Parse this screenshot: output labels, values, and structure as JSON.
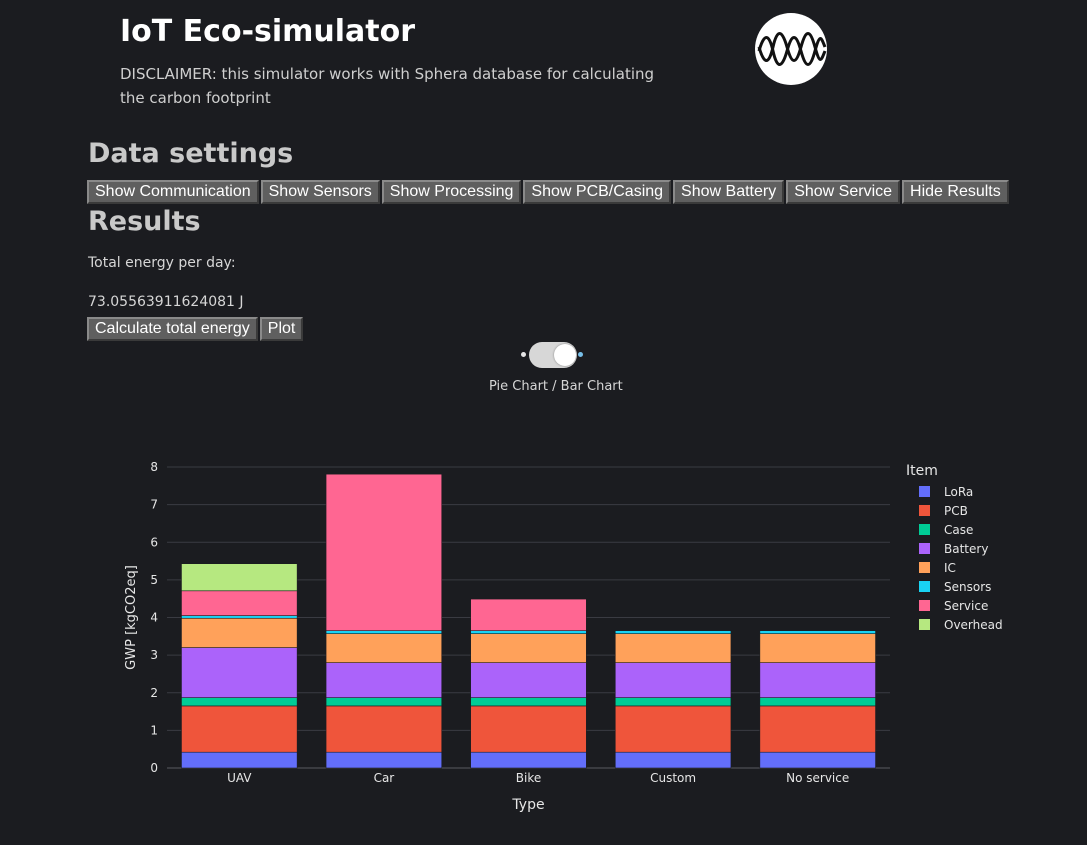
{
  "header": {
    "title": "IoT Eco-simulator",
    "disclaimer": "DISCLAIMER: this simulator works with Sphera database for calculating the carbon footprint",
    "logo_icon": "waveform-logo-icon"
  },
  "data_settings": {
    "title": "Data settings",
    "buttons": [
      "Show Communication",
      "Show Sensors",
      "Show Processing",
      "Show PCB/Casing",
      "Show Battery",
      "Show Service",
      "Hide Results"
    ]
  },
  "results": {
    "title": "Results",
    "energy_label": "Total energy per day:",
    "energy_value": "73.05563911624081 J",
    "calculate_button": "Calculate total energy",
    "plot_button": "Plot",
    "toggle_label": "Pie Chart / Bar Chart",
    "toggle_state": "Bar Chart"
  },
  "colors": {
    "background": "#1b1c20",
    "button": "#5f5f5f",
    "toggle_accent": "#77bfe9"
  },
  "chart_data": {
    "type": "bar",
    "stacked": true,
    "categories": [
      "UAV",
      "Car",
      "Bike",
      "Custom",
      "No service"
    ],
    "xlabel": "Type",
    "ylabel": "GWP [kgCO2eq]",
    "ylim": [
      0,
      8
    ],
    "yticks": [
      "0",
      "1",
      "2",
      "3",
      "4",
      "5",
      "6",
      "7",
      "8"
    ],
    "grid": true,
    "legend_title": "Item",
    "legend_position": "right",
    "series": [
      {
        "name": "LoRa",
        "color": "#636efa",
        "values": [
          0.42,
          0.42,
          0.42,
          0.42,
          0.42
        ]
      },
      {
        "name": "PCB",
        "color": "#ef553b",
        "values": [
          1.23,
          1.23,
          1.23,
          1.23,
          1.23
        ]
      },
      {
        "name": "Case",
        "color": "#00cc96",
        "values": [
          0.22,
          0.22,
          0.22,
          0.22,
          0.22
        ]
      },
      {
        "name": "Battery",
        "color": "#ab63fa",
        "values": [
          1.33,
          0.93,
          0.93,
          0.93,
          0.93
        ]
      },
      {
        "name": "IC",
        "color": "#ffa15a",
        "values": [
          0.78,
          0.77,
          0.77,
          0.77,
          0.77
        ]
      },
      {
        "name": "Sensors",
        "color": "#19d3f3",
        "values": [
          0.07,
          0.08,
          0.08,
          0.08,
          0.08
        ]
      },
      {
        "name": "Service",
        "color": "#ff6692",
        "values": [
          0.66,
          4.16,
          0.84,
          0,
          0
        ]
      },
      {
        "name": "Overhead",
        "color": "#b6e880",
        "values": [
          0.72,
          0,
          0,
          0,
          0
        ]
      }
    ]
  }
}
